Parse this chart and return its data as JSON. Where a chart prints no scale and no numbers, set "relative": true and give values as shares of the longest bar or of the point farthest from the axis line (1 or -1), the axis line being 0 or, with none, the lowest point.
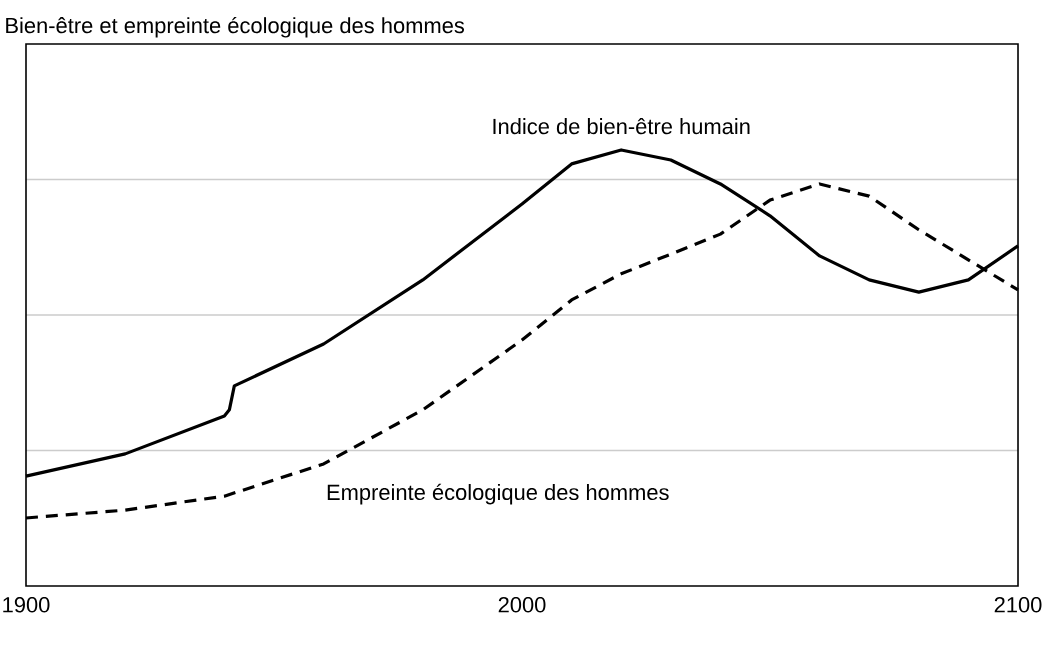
{
  "chart_data": {
    "type": "line",
    "title": "Bien-être et empreinte écologique des hommes",
    "relative": true,
    "grid": "y",
    "xlim": [
      1900,
      2100
    ],
    "xticks": [
      1900,
      2000,
      2100
    ],
    "series": [
      {
        "name": "Indice de bien-être humain",
        "color": "#000000",
        "line_style": "solid",
        "x": [
          1900,
          1920,
          1940,
          1941,
          1942,
          1960,
          1980,
          2000,
          2010,
          2020,
          2030,
          2040,
          2050,
          2060,
          2070,
          2080,
          2090,
          2100
        ],
        "values": [
          0.252,
          0.303,
          0.39,
          0.404,
          0.459,
          0.555,
          0.702,
          0.876,
          0.968,
          1,
          0.977,
          0.922,
          0.849,
          0.757,
          0.702,
          0.674,
          0.702,
          0.78
        ]
      },
      {
        "name": "Empreinte écologique des hommes",
        "color": "#000000",
        "line_style": "dashed",
        "x": [
          1900,
          1920,
          1940,
          1960,
          1980,
          2000,
          2010,
          2020,
          2030,
          2040,
          2050,
          2060,
          2070,
          2080,
          2090,
          2100
        ],
        "values": [
          0.156,
          0.174,
          0.206,
          0.28,
          0.404,
          0.564,
          0.656,
          0.716,
          0.761,
          0.807,
          0.885,
          0.922,
          0.894,
          0.817,
          0.748,
          0.679
        ]
      }
    ]
  }
}
